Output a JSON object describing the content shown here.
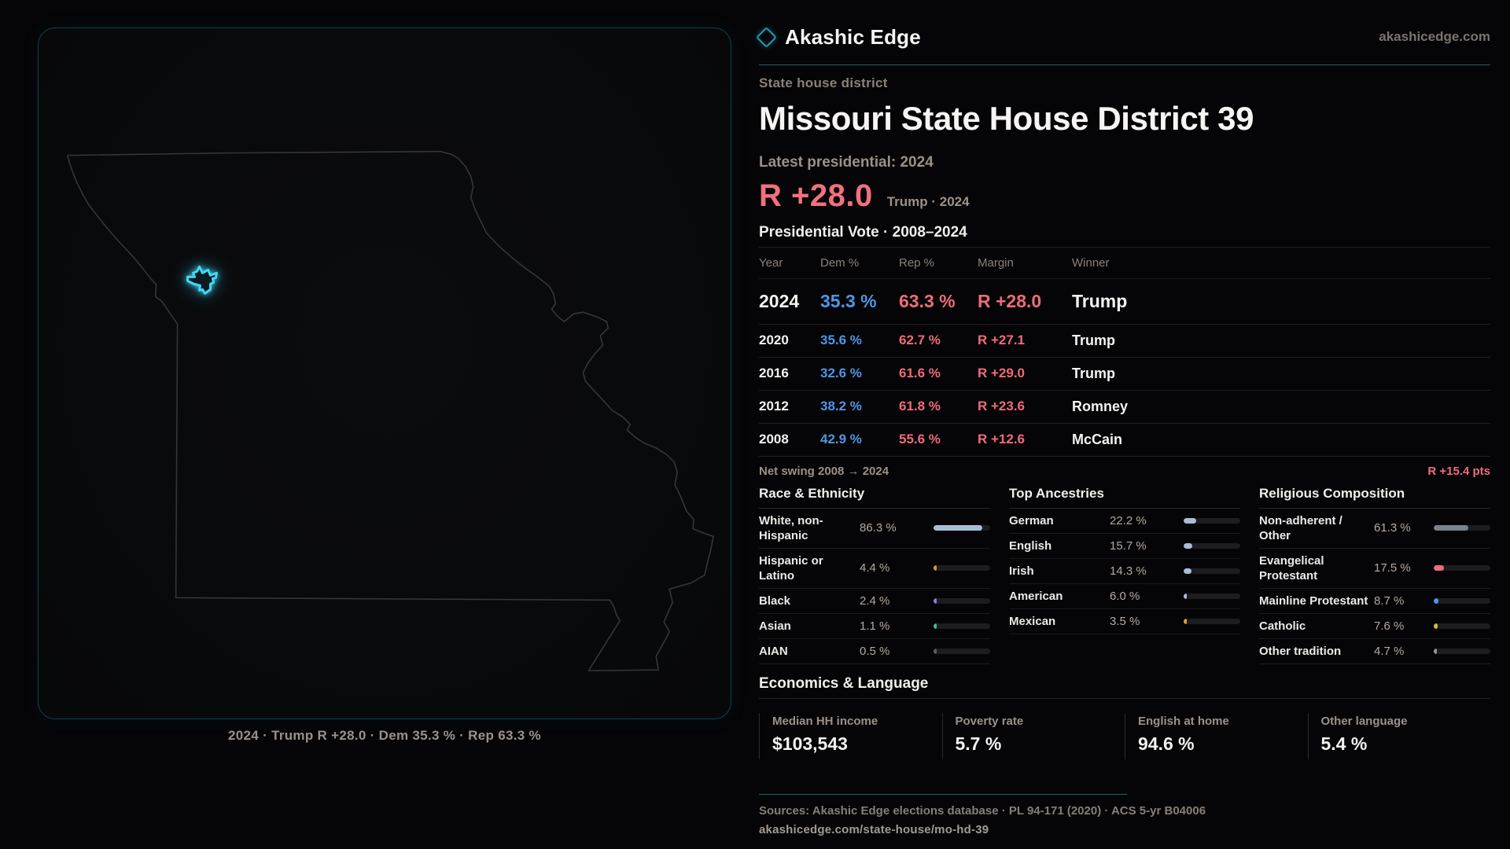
{
  "brand": {
    "name": "Akashic Edge",
    "site": "akashicedge.com"
  },
  "header": {
    "kicker": "State house district",
    "title": "Missouri State House District 39"
  },
  "headline": {
    "label": "Latest presidential: 2024",
    "margin": "R +28.0",
    "context": "Trump · 2024"
  },
  "vote_table": {
    "title": "Presidential Vote · 2008–2024",
    "columns": [
      "Year",
      "Dem %",
      "Rep %",
      "Margin",
      "Winner"
    ],
    "rows": [
      {
        "year": "2024",
        "dem": "35.3 %",
        "rep": "63.3 %",
        "margin": "R +28.0",
        "winner": "Trump"
      },
      {
        "year": "2020",
        "dem": "35.6 %",
        "rep": "62.7 %",
        "margin": "R +27.1",
        "winner": "Trump"
      },
      {
        "year": "2016",
        "dem": "32.6 %",
        "rep": "61.6 %",
        "margin": "R +29.0",
        "winner": "Trump"
      },
      {
        "year": "2012",
        "dem": "38.2 %",
        "rep": "61.8 %",
        "margin": "R +23.6",
        "winner": "Romney"
      },
      {
        "year": "2008",
        "dem": "42.9 %",
        "rep": "55.6 %",
        "margin": "R +12.6",
        "winner": "McCain"
      }
    ]
  },
  "net_swing": {
    "label": "Net swing 2008 → 2024",
    "value": "R +15.4 pts"
  },
  "demographics": [
    {
      "title": "Race & Ethnicity",
      "rows": [
        {
          "label": "White, non-Hispanic",
          "value": "86.3 %",
          "pct": 86.3,
          "color": "#a9bdd6"
        },
        {
          "label": "Hispanic or Latino",
          "value": "4.4 %",
          "pct": 4.4,
          "color": "#e0922f"
        },
        {
          "label": "Black",
          "value": "2.4 %",
          "pct": 2.4,
          "color": "#8d7ae0"
        },
        {
          "label": "Asian",
          "value": "1.1 %",
          "pct": 1.1,
          "color": "#39c08f"
        },
        {
          "label": "AIAN",
          "value": "0.5 %",
          "pct": 0.5,
          "color": "#565c64"
        }
      ]
    },
    {
      "title": "Top Ancestries",
      "rows": [
        {
          "label": "German",
          "value": "22.2 %",
          "pct": 22.2,
          "color": "#a9bdd6"
        },
        {
          "label": "English",
          "value": "15.7 %",
          "pct": 15.7,
          "color": "#a9bdd6"
        },
        {
          "label": "Irish",
          "value": "14.3 %",
          "pct": 14.3,
          "color": "#a9bdd6"
        },
        {
          "label": "American",
          "value": "6.0 %",
          "pct": 6.0,
          "color": "#a9bdd6"
        },
        {
          "label": "Mexican",
          "value": "3.5 %",
          "pct": 3.5,
          "color": "#e0a12f"
        }
      ]
    },
    {
      "title": "Religious Composition",
      "rows": [
        {
          "label": "Non-adherent / Other",
          "value": "61.3 %",
          "pct": 61.3,
          "color": "#79818c"
        },
        {
          "label": "Evangelical Protestant",
          "value": "17.5 %",
          "pct": 17.5,
          "color": "#ef6d79"
        },
        {
          "label": "Mainline Protestant",
          "value": "8.7 %",
          "pct": 8.7,
          "color": "#4f94e8"
        },
        {
          "label": "Catholic",
          "value": "7.6 %",
          "pct": 7.6,
          "color": "#e2b33c"
        },
        {
          "label": "Other tradition",
          "value": "4.7 %",
          "pct": 4.7,
          "color": "#8f969e"
        }
      ]
    }
  ],
  "economics": {
    "title": "Economics & Language",
    "stats": [
      {
        "label": "Median HH income",
        "value": "$103,543"
      },
      {
        "label": "Poverty rate",
        "value": "5.7 %"
      },
      {
        "label": "English at home",
        "value": "94.6 %"
      },
      {
        "label": "Other language",
        "value": "5.4 %"
      }
    ]
  },
  "footer": {
    "sources": "Sources: Akashic Edge elections database · PL 94-171 (2020) · ACS 5-yr B04006",
    "permalink": "akashicedge.com/state-house/mo-hd-39"
  },
  "map": {
    "caption": "2024 · Trump R +28.0 · Dem 35.3 % · Rep 63.3 %"
  },
  "colors": {
    "dem_blue": "#4f96e6",
    "rep_red": "#ee6c78",
    "headline_red": "#f0717e",
    "accent_teal": "#20606f",
    "district_cyan": "#3fd9f6"
  },
  "chart_data": [
    {
      "type": "table",
      "title": "Presidential Vote · 2008–2024",
      "columns": [
        "Year",
        "Dem %",
        "Rep %",
        "Margin",
        "Winner"
      ],
      "rows": [
        [
          "2024",
          35.3,
          63.3,
          "R +28.0",
          "Trump"
        ],
        [
          "2020",
          35.6,
          62.7,
          "R +27.1",
          "Trump"
        ],
        [
          "2016",
          32.6,
          61.6,
          "R +29.0",
          "Trump"
        ],
        [
          "2012",
          38.2,
          61.8,
          "R +23.6",
          "Romney"
        ],
        [
          "2008",
          42.9,
          55.6,
          "R +12.6",
          "McCain"
        ]
      ],
      "annotations": [
        "Net swing 2008 → 2024: R +15.4 pts",
        "Latest presidential: 2024 — R +28.0 Trump"
      ]
    },
    {
      "type": "bar",
      "title": "Race & Ethnicity",
      "unit": "%",
      "categories": [
        "White, non-Hispanic",
        "Hispanic or Latino",
        "Black",
        "Asian",
        "AIAN"
      ],
      "values": [
        86.3,
        4.4,
        2.4,
        1.1,
        0.5
      ],
      "xlim": [
        0,
        100
      ]
    },
    {
      "type": "bar",
      "title": "Top Ancestries",
      "unit": "%",
      "categories": [
        "German",
        "English",
        "Irish",
        "American",
        "Mexican"
      ],
      "values": [
        22.2,
        15.7,
        14.3,
        6.0,
        3.5
      ],
      "xlim": [
        0,
        100
      ]
    },
    {
      "type": "bar",
      "title": "Religious Composition",
      "unit": "%",
      "categories": [
        "Non-adherent / Other",
        "Evangelical Protestant",
        "Mainline Protestant",
        "Catholic",
        "Other tradition"
      ],
      "values": [
        61.3,
        17.5,
        8.7,
        7.6,
        4.7
      ],
      "xlim": [
        0,
        100
      ]
    },
    {
      "type": "table",
      "title": "Economics & Language",
      "columns": [
        "Median HH income",
        "Poverty rate",
        "English at home",
        "Other language"
      ],
      "rows": [
        [
          "$103,543",
          "5.7 %",
          "94.6 %",
          "5.4 %"
        ]
      ]
    }
  ]
}
